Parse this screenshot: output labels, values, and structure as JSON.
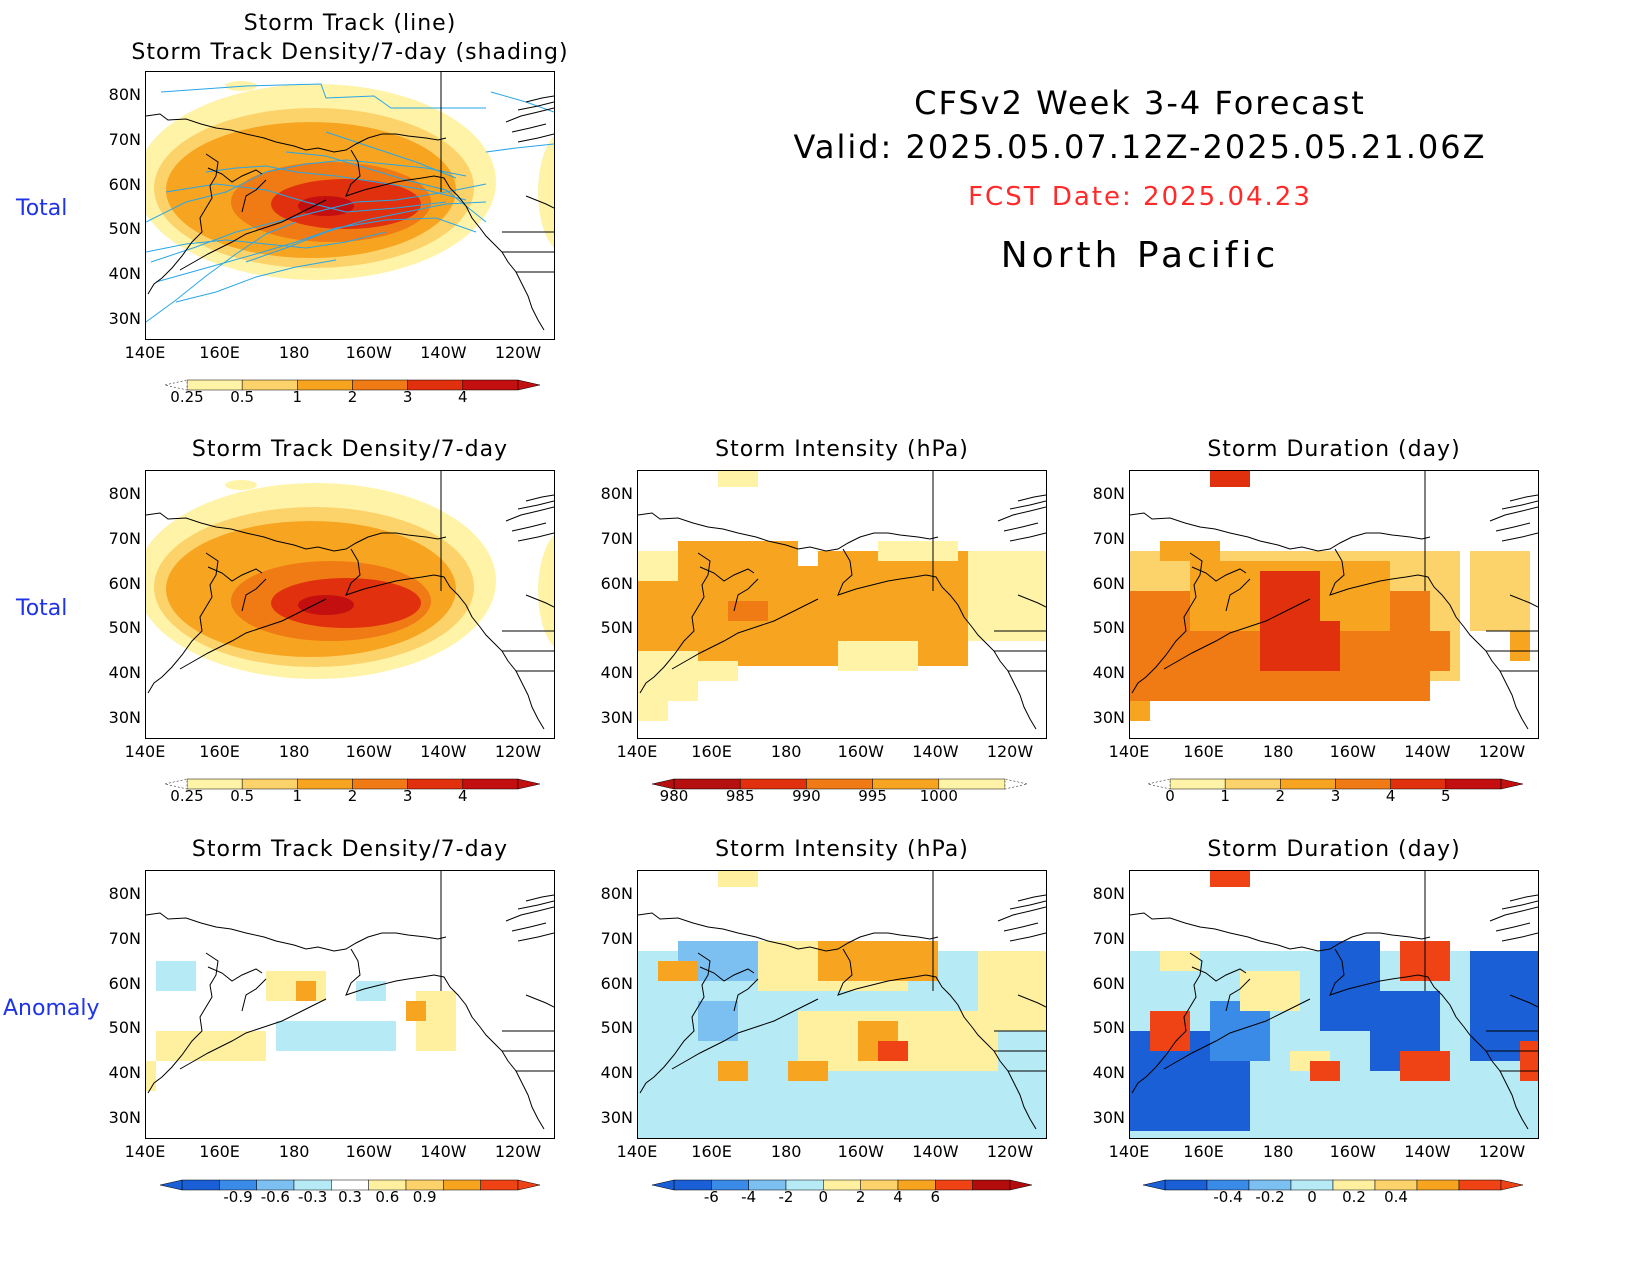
{
  "header": {
    "line1": "CFSv2 Week 3-4 Forecast",
    "line2": "Valid: 2025.05.07.12Z-2025.05.21.06Z",
    "fcst": "FCST Date: 2025.04.23",
    "region": "North Pacific",
    "fcst_color": "#ff2a2a"
  },
  "row_labels": {
    "top": "Total",
    "middle": "Total",
    "bottom": "Anomaly"
  },
  "axes": {
    "lat_labels": [
      "80N",
      "70N",
      "60N",
      "50N",
      "40N",
      "30N"
    ],
    "lon_labels": [
      "140E",
      "160E",
      "180",
      "160W",
      "140W",
      "120W"
    ]
  },
  "panels": {
    "track": {
      "title_line1": "Storm Track (line)",
      "title_line2": "Storm Track Density/7-day (shading)"
    },
    "density_total": {
      "title": "Storm Track Density/7-day"
    },
    "intensity_total": {
      "title": "Storm Intensity (hPa)"
    },
    "duration_total": {
      "title": "Storm Duration (day)"
    },
    "density_anom": {
      "title": "Storm Track Density/7-day"
    },
    "intensity_anom": {
      "title": "Storm Intensity (hPa)"
    },
    "duration_anom": {
      "title": "Storm Duration (day)"
    }
  },
  "colorbars": {
    "density": {
      "labels": [
        "0.25",
        "0.5",
        "1",
        "2",
        "3",
        "4"
      ],
      "colors": [
        "#fff3a8",
        "#fcd36a",
        "#f7a521",
        "#f07a14",
        "#e0300e",
        "#c30f0f"
      ]
    },
    "intensity": {
      "labels": [
        "980",
        "985",
        "990",
        "995",
        "1000"
      ],
      "colors": [
        "#b50f0f",
        "#e0300e",
        "#f07a14",
        "#f7a521",
        "#fff3a8"
      ]
    },
    "duration": {
      "labels": [
        "0",
        "1",
        "2",
        "3",
        "4",
        "5"
      ],
      "colors": [
        "#fff3a8",
        "#fcd36a",
        "#f7a521",
        "#f07a14",
        "#e0300e",
        "#c30f0f"
      ]
    },
    "density_anom": {
      "labels": [
        "-0.9",
        "-0.6",
        "-0.3",
        "0.3",
        "0.6",
        "0.9"
      ],
      "colors": [
        "#1a5fd6",
        "#3a8be8",
        "#7cc0f2",
        "#b6eaf5",
        "#ffffff",
        "#fff0a0",
        "#fcd36a",
        "#f7a521",
        "#ef4215"
      ]
    },
    "intensity_anom": {
      "labels": [
        "-6",
        "-4",
        "-2",
        "0",
        "2",
        "4",
        "6"
      ],
      "colors": [
        "#1a5fd6",
        "#3a8be8",
        "#7cc0f2",
        "#b6eaf5",
        "#fff0a0",
        "#fcd36a",
        "#f7a521",
        "#ef4215",
        "#b20c0c"
      ]
    },
    "duration_anom": {
      "labels": [
        "-0.4",
        "-0.2",
        "0",
        "0.2",
        "0.4"
      ],
      "colors": [
        "#1a5fd6",
        "#3a8be8",
        "#7cc0f2",
        "#b6eaf5",
        "#fff0a0",
        "#fcd36a",
        "#f7a521",
        "#ef4215"
      ]
    }
  },
  "colors": {
    "track_line": "#29a6e6",
    "coast": "#000000"
  }
}
